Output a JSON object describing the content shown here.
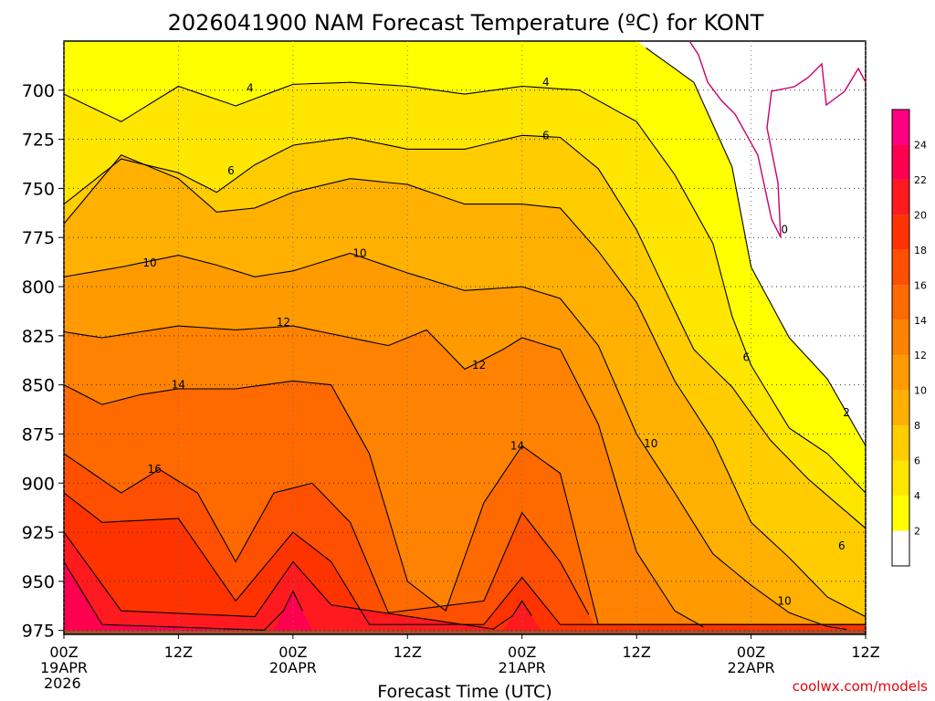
{
  "chart_data": {
    "type": "heatmap",
    "title": "2026041900 NAM Forecast Temperature (ºC) for KONT",
    "xlabel": "Forecast Time (UTC)",
    "ylabel": "",
    "credit": "coolwx.com/models",
    "y_axis": {
      "ticks": [
        "700",
        "725",
        "750",
        "775",
        "800",
        "825",
        "850",
        "875",
        "900",
        "925",
        "950",
        "975"
      ],
      "values": [
        700,
        725,
        750,
        775,
        800,
        825,
        850,
        875,
        900,
        925,
        950,
        975
      ],
      "range": [
        675,
        977
      ],
      "direction": "pressure decreasing upward"
    },
    "x_axis": {
      "range_hours": [
        0,
        84
      ],
      "ticks": [
        {
          "hour": 0,
          "line1": "00Z",
          "line2": "19APR",
          "line3": "2026"
        },
        {
          "hour": 12,
          "line1": "12Z",
          "line2": "",
          "line3": ""
        },
        {
          "hour": 24,
          "line1": "00Z",
          "line2": "20APR",
          "line3": ""
        },
        {
          "hour": 36,
          "line1": "12Z",
          "line2": "",
          "line3": ""
        },
        {
          "hour": 48,
          "line1": "00Z",
          "line2": "21APR",
          "line3": ""
        },
        {
          "hour": 60,
          "line1": "12Z",
          "line2": "",
          "line3": ""
        },
        {
          "hour": 72,
          "line1": "00Z",
          "line2": "22APR",
          "line3": ""
        },
        {
          "hour": 84,
          "line1": "12Z",
          "line2": "",
          "line3": ""
        }
      ]
    },
    "grid": true,
    "colorbar": {
      "position": "right",
      "levels": [
        2,
        4,
        6,
        8,
        10,
        12,
        14,
        16,
        18,
        20,
        22,
        24
      ],
      "colors": [
        "#ffffff",
        "#ffff00",
        "#ffe600",
        "#ffcc00",
        "#ffb000",
        "#ff9a00",
        "#ff8200",
        "#ff6a00",
        "#ff4f00",
        "#ff3300",
        "#ff1a20",
        "#ff0050",
        "#ff0080"
      ]
    },
    "contour_labels": [
      {
        "value": "4",
        "hour": 19.5,
        "pressure": 699
      },
      {
        "value": "4",
        "hour": 50.5,
        "pressure": 696
      },
      {
        "value": "6",
        "hour": 17.5,
        "pressure": 741
      },
      {
        "value": "6",
        "hour": 50.5,
        "pressure": 723
      },
      {
        "value": "10",
        "hour": 9.0,
        "pressure": 788
      },
      {
        "value": "10",
        "hour": 31.0,
        "pressure": 783
      },
      {
        "value": "12",
        "hour": 23.0,
        "pressure": 818
      },
      {
        "value": "12",
        "hour": 43.5,
        "pressure": 840
      },
      {
        "value": "14",
        "hour": 12.0,
        "pressure": 850
      },
      {
        "value": "14",
        "hour": 47.5,
        "pressure": 881
      },
      {
        "value": "16",
        "hour": 9.5,
        "pressure": 893
      },
      {
        "value": "10",
        "hour": 61.5,
        "pressure": 880
      },
      {
        "value": "10",
        "hour": 75.5,
        "pressure": 960
      },
      {
        "value": "6",
        "hour": 71.5,
        "pressure": 836
      },
      {
        "value": "6",
        "hour": 81.5,
        "pressure": 932
      },
      {
        "value": "0",
        "hour": 75.5,
        "pressure": 771
      },
      {
        "value": "2",
        "hour": 82.0,
        "pressure": 864
      }
    ],
    "isotherms": [
      {
        "value": 2,
        "pressure_by_hour": {
          "0": 675,
          "24": 675,
          "48": 675,
          "60": 675,
          "66": 696,
          "70": 739,
          "72": 790,
          "76": 826,
          "80": 847,
          "84": 881
        }
      },
      {
        "value": 4,
        "pressure_by_hour": {
          "0": 702,
          "6": 716,
          "12": 698,
          "18": 708,
          "24": 697,
          "30": 696,
          "36": 698,
          "42": 702,
          "48": 698,
          "54": 700,
          "60": 716,
          "64": 743,
          "68": 778,
          "70": 815,
          "72": 840,
          "76": 872,
          "80": 885,
          "84": 905
        }
      },
      {
        "value": 6,
        "pressure_by_hour": {
          "0": 758,
          "6": 735,
          "12": 742,
          "16": 752,
          "20": 738,
          "24": 728,
          "30": 724,
          "36": 730,
          "42": 730,
          "48": 723,
          "52": 724,
          "56": 740,
          "60": 771,
          "64": 812,
          "66": 832,
          "70": 851,
          "74": 878,
          "78": 898,
          "84": 923
        }
      },
      {
        "value": 8,
        "pressure_by_hour": {
          "0": 768,
          "6": 733,
          "12": 745,
          "16": 762,
          "20": 760,
          "24": 752,
          "30": 745,
          "36": 748,
          "42": 758,
          "48": 758,
          "52": 760,
          "56": 782,
          "60": 808,
          "64": 848,
          "68": 878,
          "72": 920,
          "76": 938,
          "80": 958,
          "84": 968
        }
      },
      {
        "value": 10,
        "pressure_by_hour": {
          "0": 795,
          "6": 790,
          "9": 787,
          "12": 784,
          "16": 789,
          "20": 795,
          "24": 792,
          "30": 783,
          "36": 793,
          "42": 802,
          "48": 800,
          "52": 806,
          "56": 830,
          "60": 875,
          "64": 905,
          "68": 936,
          "72": 952,
          "76": 966,
          "80": 973,
          "84": 976
        }
      },
      {
        "value": 12,
        "pressure_by_hour": {
          "0": 823,
          "4": 826,
          "8": 823,
          "12": 820,
          "18": 822,
          "24": 820,
          "30": 826,
          "34": 830,
          "38": 822,
          "42": 842,
          "46": 832,
          "48": 826,
          "52": 832,
          "56": 870,
          "60": 935,
          "64": 965,
          "68": 976
        }
      },
      {
        "value": 14,
        "pressure_by_hour": {
          "0": 850,
          "4": 860,
          "8": 855,
          "12": 852,
          "18": 852,
          "24": 848,
          "28": 850,
          "32": 885,
          "36": 950,
          "40": 965,
          "44": 910,
          "48": 881,
          "52": 895,
          "56": 972
        }
      },
      {
        "value": 16,
        "pressure_by_hour": {
          "0": 885,
          "6": 905,
          "10": 893,
          "14": 905,
          "18": 940,
          "22": 905,
          "26": 900,
          "30": 920,
          "34": 966,
          "44": 960,
          "48": 915,
          "52": 940,
          "56": 976
        }
      },
      {
        "value": 18,
        "pressure_by_hour": {
          "0": 905,
          "4": 920,
          "12": 918,
          "18": 960,
          "24": 925,
          "28": 940,
          "32": 972,
          "44": 972,
          "48": 948,
          "52": 972
        }
      },
      {
        "value": 20,
        "pressure_by_hour": {
          "0": 925,
          "6": 965,
          "20": 968,
          "24": 940,
          "28": 962,
          "46": 975,
          "48": 960,
          "50": 975
        }
      },
      {
        "value": 22,
        "pressure_by_hour": {
          "0": 940,
          "4": 972,
          "22": 975,
          "24": 955,
          "26": 975
        }
      }
    ],
    "surface_pressure": 975
  }
}
